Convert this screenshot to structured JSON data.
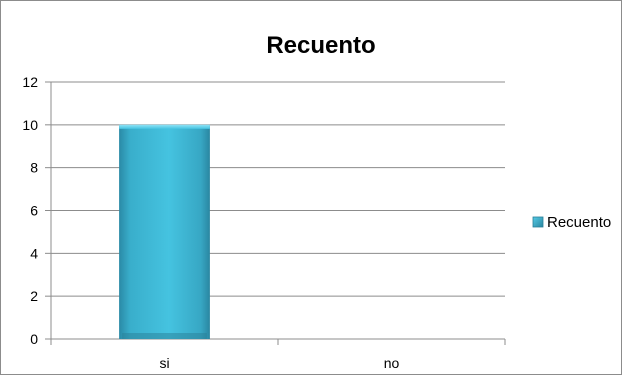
{
  "chart_data": {
    "type": "bar",
    "title": "Recuento",
    "categories": [
      "si",
      "no"
    ],
    "series": [
      {
        "name": "Recuento",
        "values": [
          10,
          0
        ],
        "color": "#3fb6d3"
      }
    ],
    "ylim": [
      0,
      12
    ],
    "yticks": [
      0,
      2,
      4,
      6,
      8,
      10,
      12
    ],
    "grid": true,
    "legend": "right"
  }
}
